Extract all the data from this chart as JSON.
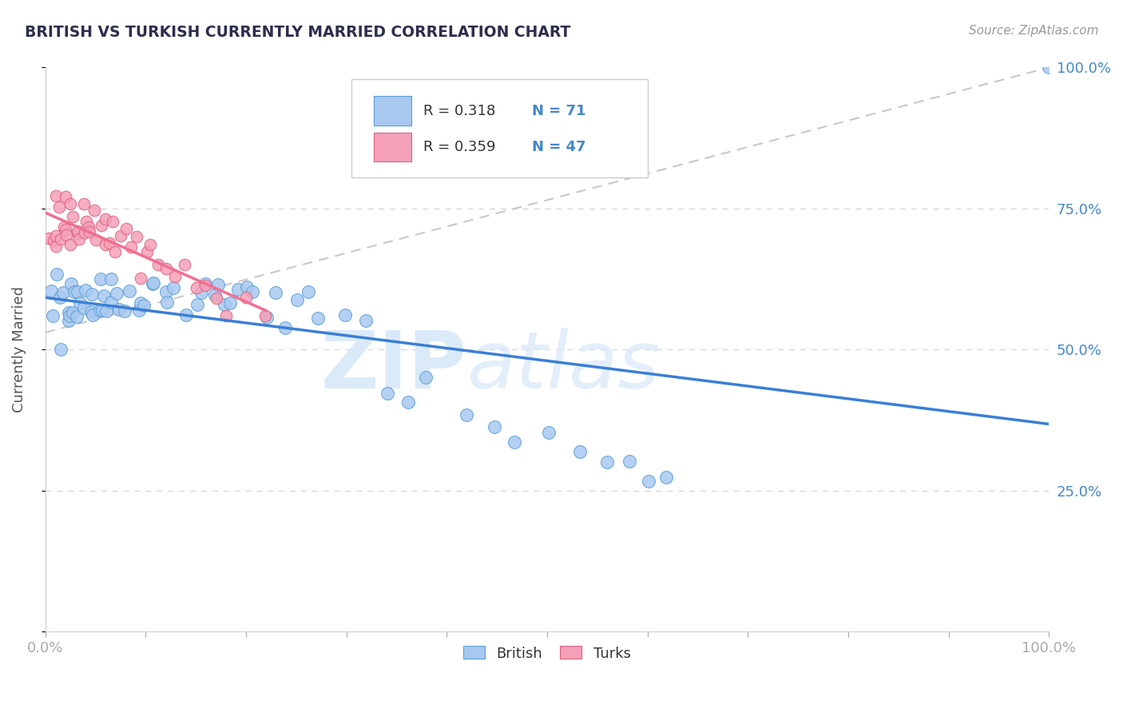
{
  "title": "BRITISH VS TURKISH CURRENTLY MARRIED CORRELATION CHART",
  "source_text": "Source: ZipAtlas.com",
  "ylabel": "Currently Married",
  "R_british": 0.318,
  "N_british": 71,
  "R_turks": 0.359,
  "N_turks": 47,
  "british_color": "#a8c8f0",
  "british_edge_color": "#5a9fd4",
  "turks_color": "#f4a0b8",
  "turks_edge_color": "#e06080",
  "british_line_color": "#3a7fd5",
  "turks_line_color": "#f07090",
  "ref_line_color": "#c8c8c8",
  "grid_color": "#d8d8d8",
  "title_color": "#2d2d4e",
  "axis_label_color": "#4488cc",
  "legend_text_color": "#333333",
  "source_color": "#999999",
  "watermark_color": "#d8e8f8"
}
